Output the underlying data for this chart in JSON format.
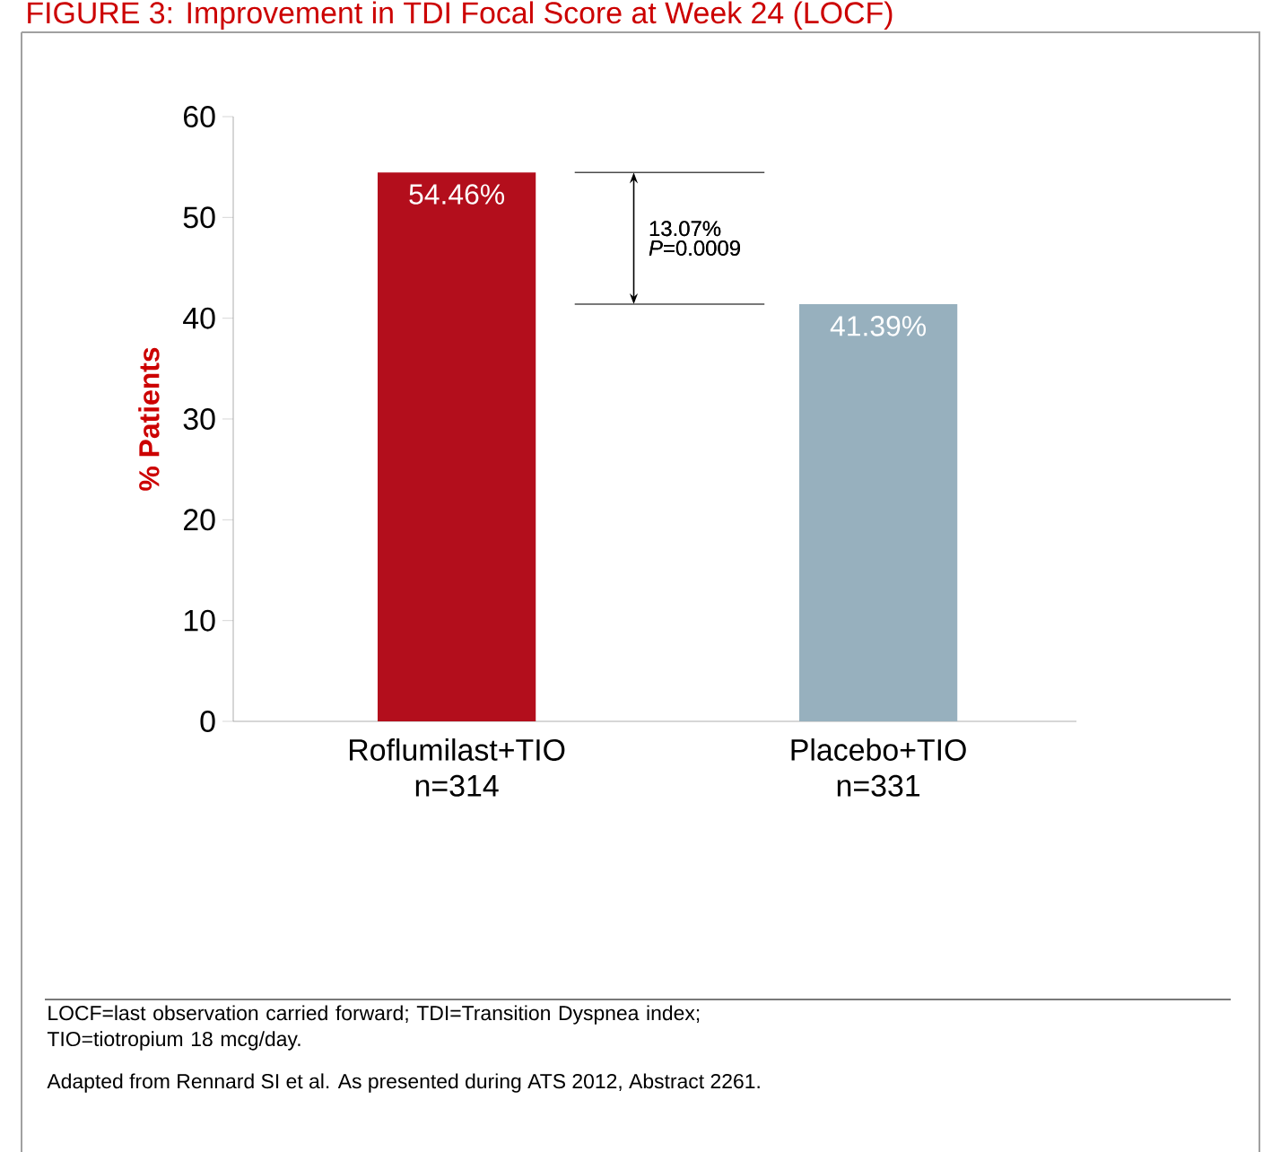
{
  "chart_data": {
    "type": "bar",
    "title": "FIGURE 3: Improvement in TDI Focal Score at Week 24 (LOCF)",
    "ylabel": "% Patients",
    "categories": [
      "Roflumilast+TIO n=314",
      "Placebo+TIO n=331"
    ],
    "values": [
      54.46,
      41.39
    ],
    "colors": [
      "#b30e1c",
      "#97b0be"
    ],
    "value_labels": [
      "54.46%",
      "41.39%"
    ],
    "ref_lines": [
      {
        "axis": "y",
        "value": 54.46,
        "color": "#4c4c4c"
      },
      {
        "axis": "y",
        "value": 41.39,
        "color": "#4c4c4c"
      }
    ],
    "ylim": [
      0,
      60
    ],
    "yticks": [
      0,
      10,
      20,
      30,
      40,
      50,
      60
    ],
    "annotations": [
      "13.07%",
      "*P*=0.0009",
      "LOCF=last observation carried forward; TDI=Transition Dyspnea index; TIO=tiotropium 18 mcg/day.",
      "Adapted from Rennard SI et al. As presented during ATS 2012, Abstract 2261."
    ]
  }
}
